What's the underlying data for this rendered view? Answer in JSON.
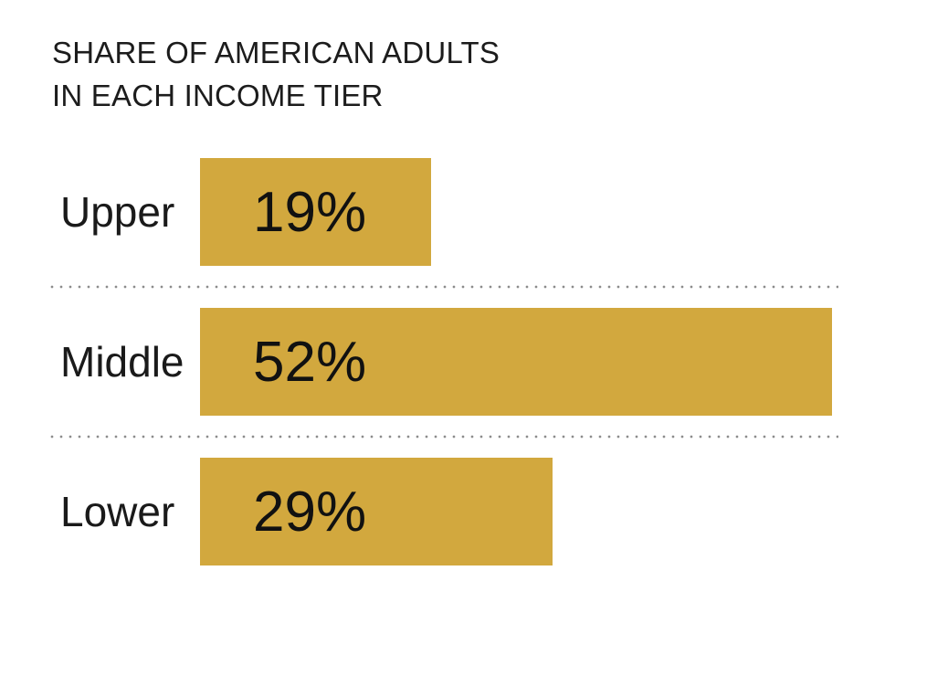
{
  "chart_data": {
    "type": "bar",
    "orientation": "horizontal",
    "title": "SHARE OF AMERICAN ADULTS IN EACH INCOME TIER",
    "title_lines": [
      "SHARE OF AMERICAN ADULTS",
      "IN EACH INCOME TIER"
    ],
    "categories": [
      "Upper",
      "Middle",
      "Lower"
    ],
    "values": [
      19,
      52,
      29
    ],
    "value_labels": [
      "19%",
      "52%",
      "29%"
    ],
    "xlim": [
      0,
      52
    ],
    "xlabel": "",
    "ylabel": "",
    "legend": "none",
    "grid": "dotted horizontal separators between bars",
    "value_label_position": "inside-left",
    "bar_color": "#d2a83e",
    "label_color": "#1a1a1a",
    "value_color": "#111111",
    "title_color": "#1c1c1c",
    "separator_dot_color": "#8c8c8c",
    "background_color": "#ffffff"
  }
}
